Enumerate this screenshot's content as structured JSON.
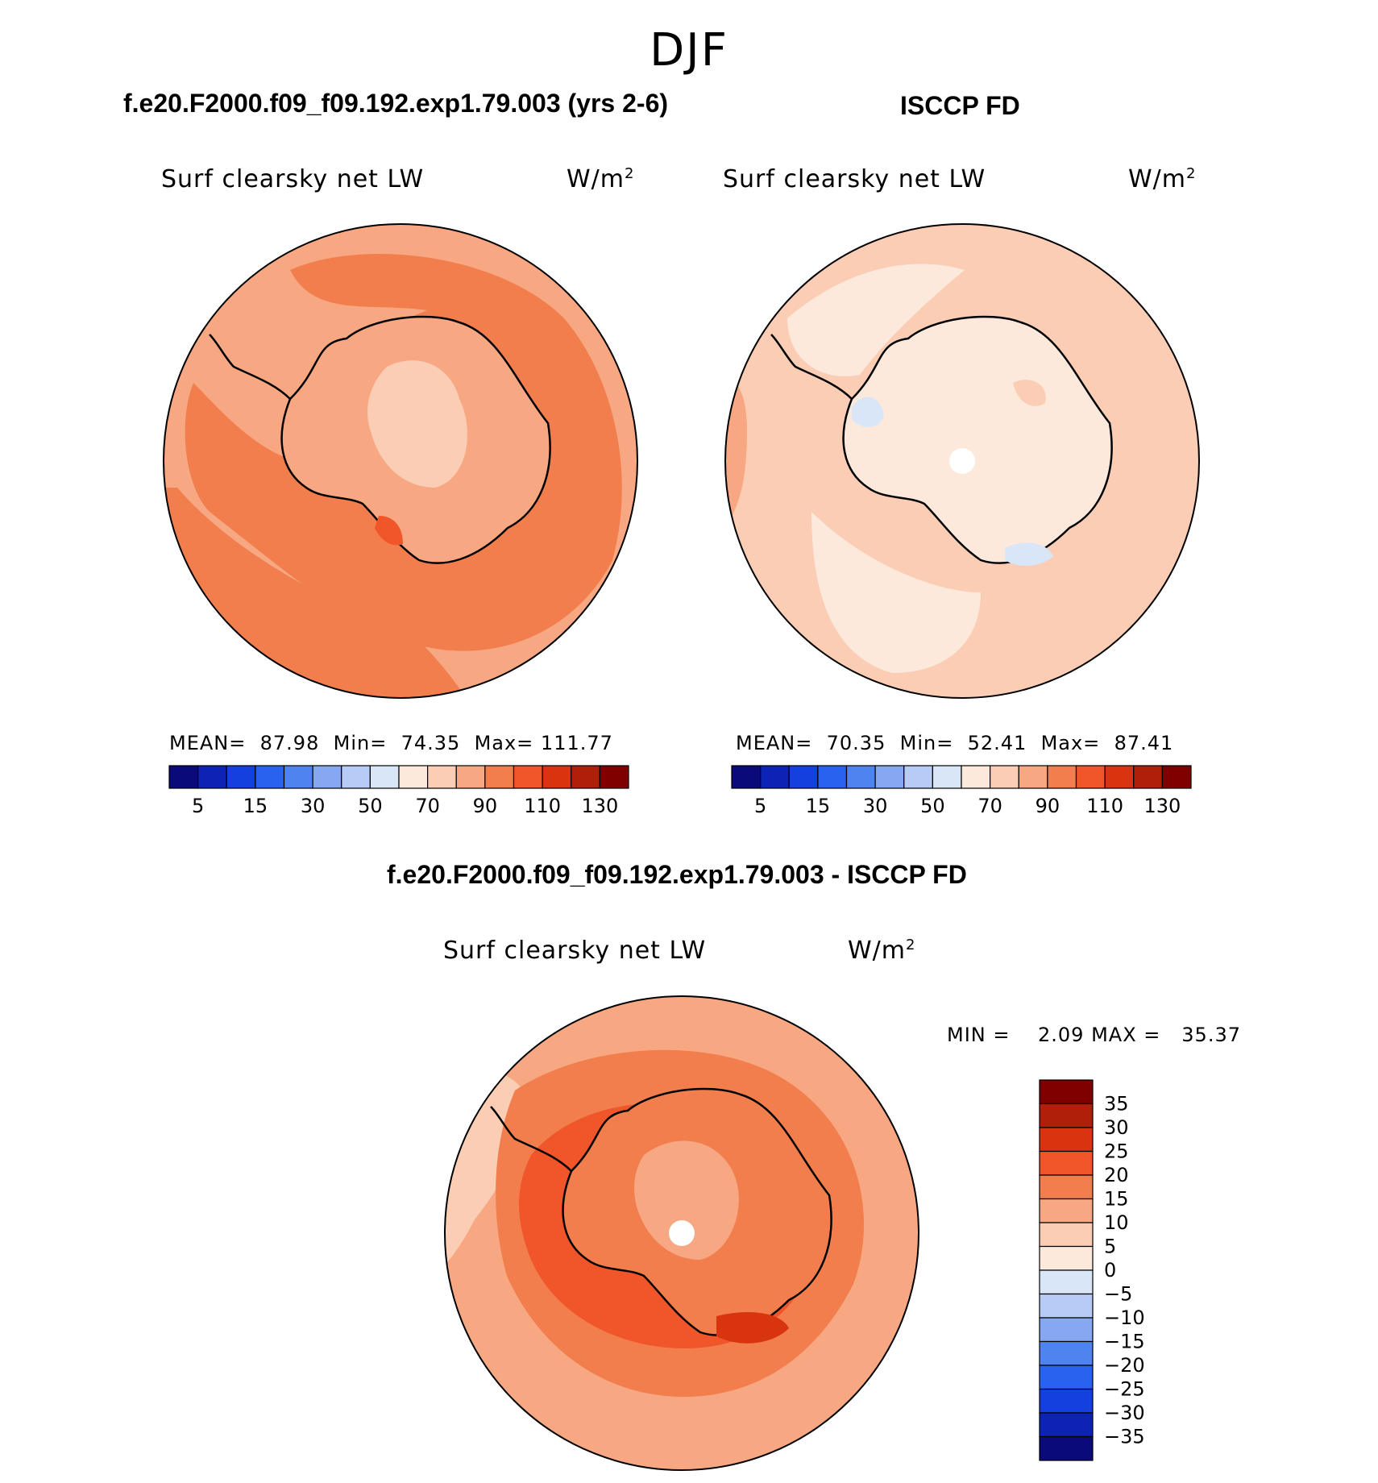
{
  "season": "DJF",
  "panels": [
    {
      "id": "model",
      "title": "f.e20.F2000.f09_f09.192.exp1.79.003 (yrs 2-6)",
      "variable": "Surf clearsky net LW",
      "units": "W/m",
      "units_sup": "2",
      "stats": {
        "mean_label": "MEAN=",
        "mean": "87.98",
        "min_label": "Min=",
        "min": "74.35",
        "max_label": "Max=",
        "max": "111.77"
      }
    },
    {
      "id": "obs",
      "title": "ISCCP FD",
      "variable": "Surf clearsky net LW",
      "units": "W/m",
      "units_sup": "2",
      "stats": {
        "mean_label": "MEAN=",
        "mean": "70.35",
        "min_label": "Min=",
        "min": "52.41",
        "max_label": "Max=",
        "max": "87.41"
      }
    },
    {
      "id": "diff",
      "title": "f.e20.F2000.f09_f09.192.exp1.79.003 - ISCCP FD",
      "variable": "Surf clearsky net LW",
      "units": "W/m",
      "units_sup": "2",
      "stats": {
        "min_label": "MIN =",
        "min": "2.09",
        "max_label": "MAX =",
        "max": "35.37"
      }
    }
  ],
  "colorbar_levels": {
    "colors": [
      "#0a0a7a",
      "#0c23b5",
      "#1440e0",
      "#2a62f0",
      "#4f84f0",
      "#86a8f2",
      "#b6cbf5",
      "#d8e6f8",
      "#fde9dc",
      "#fbcdb4",
      "#f7a882",
      "#f27e4e",
      "#f0562a",
      "#d83410",
      "#b01f0a",
      "#800000"
    ],
    "labels": [
      "5",
      "15",
      "30",
      "50",
      "70",
      "90",
      "110",
      "130"
    ]
  },
  "diff_colorbar_levels": {
    "colors": [
      "#0a0a7a",
      "#0c23b5",
      "#1440e0",
      "#2a62f0",
      "#4f84f0",
      "#86a8f2",
      "#b6cbf5",
      "#d8e6f8",
      "#fde9dc",
      "#fbcdb4",
      "#f7a882",
      "#f27e4e",
      "#f0562a",
      "#d83410",
      "#b01f0a",
      "#800000"
    ],
    "labels": [
      "35",
      "30",
      "25",
      "20",
      "15",
      "10",
      "5",
      "0",
      "−5",
      "−10",
      "−15",
      "−20",
      "−25",
      "−30",
      "−35"
    ]
  }
}
